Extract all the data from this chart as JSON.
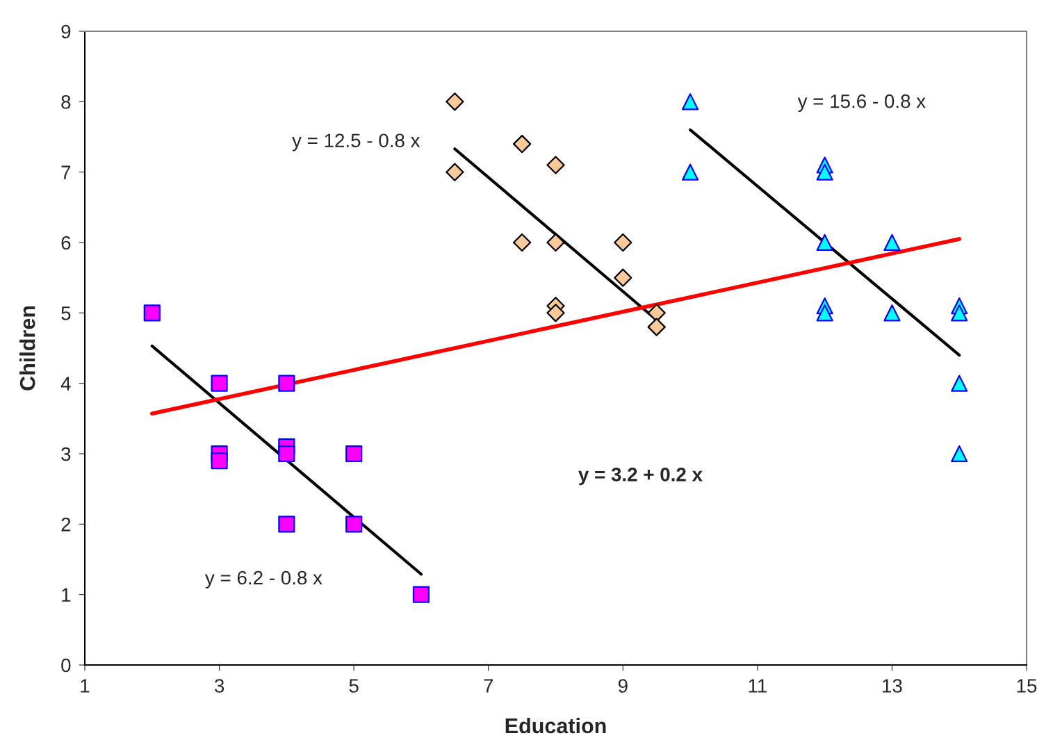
{
  "chart_data": {
    "type": "scatter",
    "xlabel": "Education",
    "ylabel": "Children",
    "xlim": [
      1,
      15
    ],
    "ylim": [
      0,
      9
    ],
    "xticks": [
      1,
      3,
      5,
      7,
      9,
      11,
      13,
      15
    ],
    "yticks": [
      0,
      1,
      2,
      3,
      4,
      5,
      6,
      7,
      8,
      9
    ],
    "grid": false,
    "legend": false,
    "series": [
      {
        "marker": "square",
        "color": "#ff00ff",
        "x": [
          2,
          3,
          3,
          3,
          4,
          4,
          4,
          4,
          5,
          5,
          6
        ],
        "values": [
          5,
          4,
          3,
          2.9,
          4,
          3.1,
          3,
          2,
          3,
          2,
          1
        ]
      },
      {
        "marker": "diamond",
        "color": "#fcc99b",
        "x": [
          6.5,
          6.5,
          7.5,
          7.5,
          8,
          8,
          8,
          8,
          9,
          9,
          9.5,
          9.5
        ],
        "values": [
          8,
          7,
          7.4,
          6,
          7.1,
          6,
          5.1,
          5,
          6,
          5.5,
          5,
          4.8
        ]
      },
      {
        "marker": "triangle",
        "color": "#00ffff",
        "x": [
          10,
          10,
          12,
          12,
          12,
          12,
          12,
          13,
          13,
          14,
          14,
          14,
          14
        ],
        "values": [
          8,
          7,
          7.1,
          7,
          6,
          5.1,
          5,
          6,
          5,
          5.1,
          5,
          4,
          3
        ]
      },
      {
        "type": "line",
        "marker": "none",
        "color": "#000000",
        "x": [
          2,
          6
        ],
        "values": [
          4.53,
          1.29
        ]
      },
      {
        "type": "line",
        "marker": "none",
        "color": "#000000",
        "x": [
          6.5,
          9.5
        ],
        "values": [
          7.33,
          4.9
        ]
      },
      {
        "type": "line",
        "marker": "none",
        "color": "#000000",
        "x": [
          10,
          14
        ],
        "values": [
          7.6,
          4.4
        ]
      },
      {
        "type": "line",
        "marker": "none",
        "color": "#ff0000",
        "x": [
          2,
          14
        ],
        "values": [
          3.57,
          6.05
        ]
      }
    ],
    "annotations": [
      "y = 6.2 - 0.8 x",
      "y = 12.5 - 0.8 x",
      "y = 15.6 - 0.8 x",
      "y = 3.2 + 0.2 x"
    ]
  }
}
